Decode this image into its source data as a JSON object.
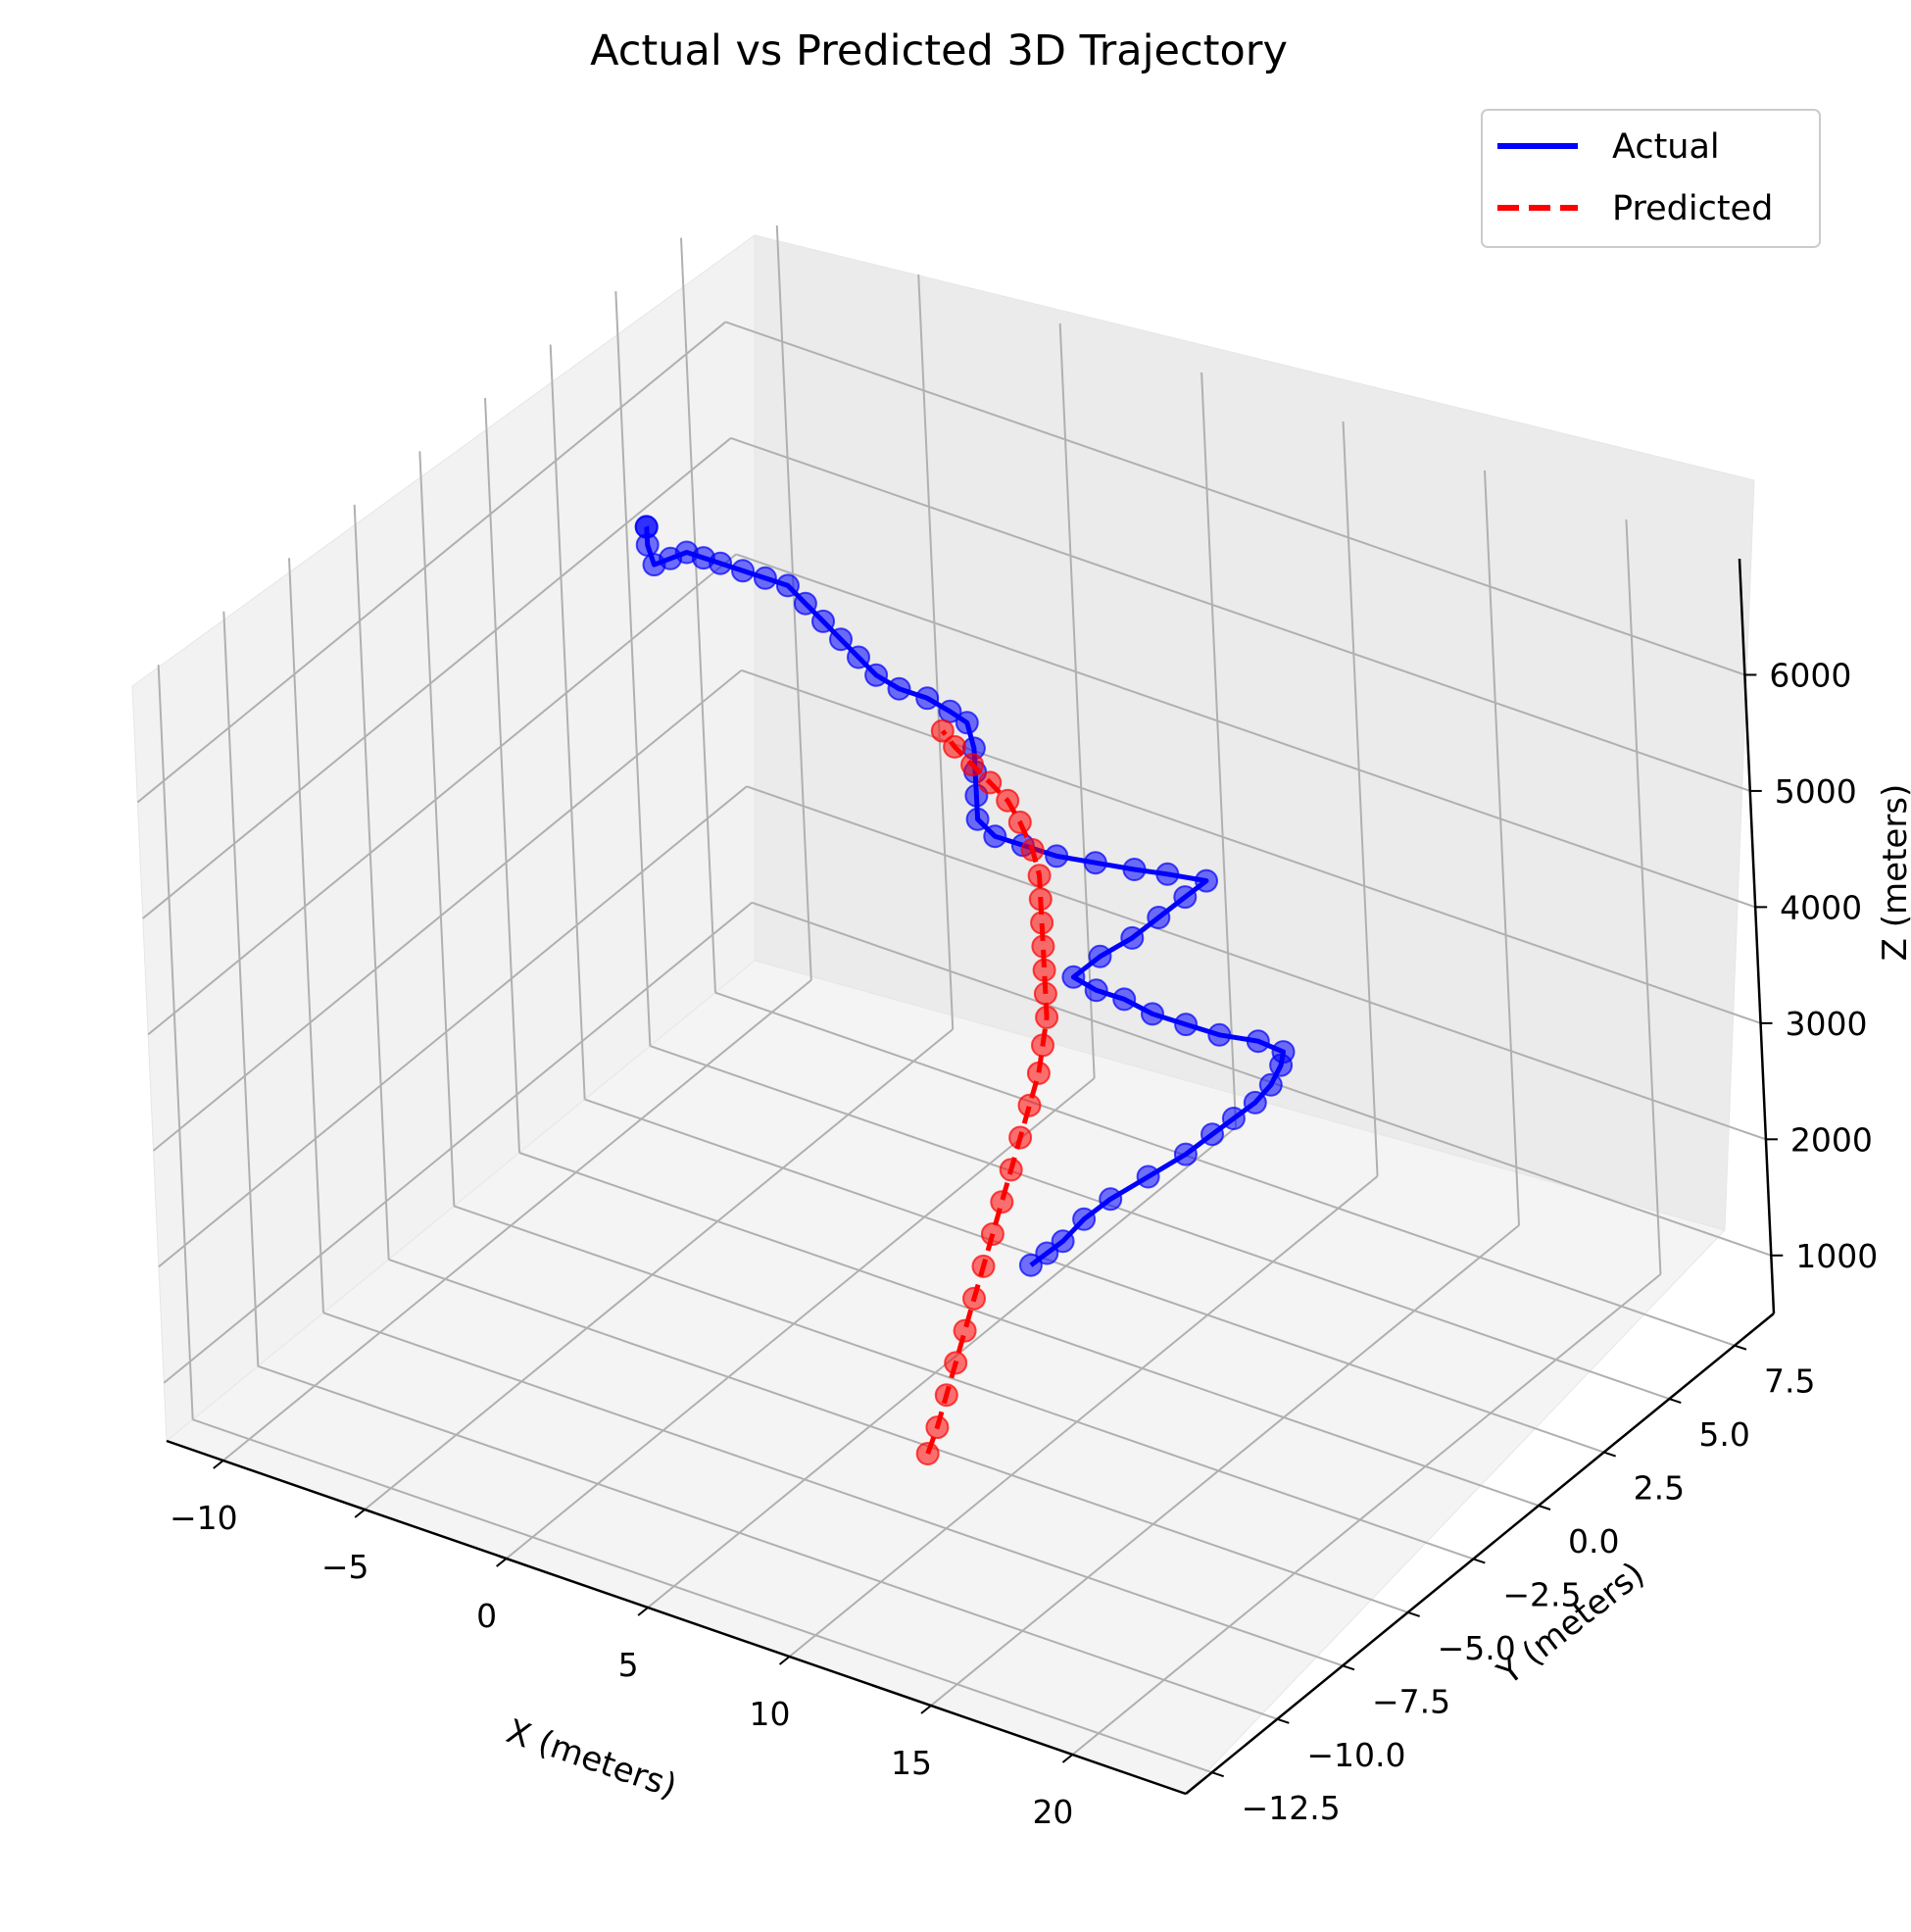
{
  "chart_data": {
    "type": "scatter3d-line",
    "title": "Actual vs Predicted 3D Trajectory",
    "xlabel": "X (meters)",
    "ylabel": "Y (meters)",
    "zlabel": "Z (meters)",
    "xlim": [
      -12,
      24
    ],
    "ylim": [
      -13.5,
      9
    ],
    "zlim": [
      500,
      7000
    ],
    "x_ticks": [
      -10,
      -5,
      0,
      5,
      10,
      15,
      20
    ],
    "x_tick_labels": [
      "−10",
      "−5",
      "0",
      "5",
      "10",
      "15",
      "20"
    ],
    "y_ticks": [
      -12.5,
      -10.0,
      -7.5,
      -5.0,
      -2.5,
      0.0,
      2.5,
      5.0,
      7.5
    ],
    "y_tick_labels": [
      "−12.5",
      "−10.0",
      "−7.5",
      "−5.0",
      "−2.5",
      "0.0",
      "2.5",
      "5.0",
      "7.5"
    ],
    "z_ticks": [
      1000,
      2000,
      3000,
      4000,
      5000,
      6000
    ],
    "z_tick_labels": [
      "1000",
      "2000",
      "3000",
      "4000",
      "5000",
      "6000"
    ],
    "grid": true,
    "legend_position": "top-right",
    "series": [
      {
        "name": "Actual",
        "color": "#0000ff",
        "linestyle": "solid",
        "points": [
          [
            5.2,
            1.0,
            800
          ],
          [
            5.6,
            1.2,
            900
          ],
          [
            6.0,
            1.4,
            1000
          ],
          [
            6.4,
            1.8,
            1150
          ],
          [
            7.0,
            2.2,
            1300
          ],
          [
            7.8,
            2.8,
            1450
          ],
          [
            8.6,
            3.4,
            1600
          ],
          [
            9.2,
            3.8,
            1750
          ],
          [
            9.8,
            4.0,
            1900
          ],
          [
            10.4,
            4.2,
            2050
          ],
          [
            10.8,
            4.4,
            2200
          ],
          [
            11.0,
            4.6,
            2350
          ],
          [
            11.2,
            4.5,
            2500
          ],
          [
            10.8,
            4.0,
            2650
          ],
          [
            10.2,
            3.2,
            2800
          ],
          [
            9.6,
            2.6,
            2950
          ],
          [
            9.0,
            2.0,
            3100
          ],
          [
            8.4,
            1.6,
            3250
          ],
          [
            7.8,
            1.2,
            3350
          ],
          [
            7.2,
            1.0,
            3450
          ],
          [
            7.6,
            1.6,
            3550
          ],
          [
            8.2,
            2.2,
            3650
          ],
          [
            8.6,
            2.8,
            3750
          ],
          [
            9.0,
            3.4,
            3850
          ],
          [
            9.4,
            3.8,
            3950
          ],
          [
            8.6,
            3.2,
            4050
          ],
          [
            8.0,
            2.6,
            4150
          ],
          [
            7.2,
            2.0,
            4250
          ],
          [
            6.4,
            1.4,
            4350
          ],
          [
            5.6,
            1.0,
            4450
          ],
          [
            5.0,
            0.6,
            4550
          ],
          [
            4.6,
            0.4,
            4700
          ],
          [
            4.4,
            0.6,
            4850
          ],
          [
            4.2,
            0.8,
            5000
          ],
          [
            4.0,
            1.0,
            5150
          ],
          [
            3.6,
            1.2,
            5300
          ],
          [
            3.2,
            1.0,
            5400
          ],
          [
            2.6,
            0.8,
            5500
          ],
          [
            1.8,
            0.6,
            5550
          ],
          [
            1.0,
            0.6,
            5600
          ],
          [
            0.2,
            0.8,
            5650
          ],
          [
            -0.6,
            1.0,
            5700
          ],
          [
            -1.4,
            1.2,
            5750
          ],
          [
            -2.2,
            1.4,
            5800
          ],
          [
            -3.0,
            1.6,
            5850
          ],
          [
            -3.6,
            1.4,
            5900
          ],
          [
            -4.2,
            1.2,
            5950
          ],
          [
            -4.8,
            1.0,
            6000
          ],
          [
            -5.2,
            0.8,
            6050
          ],
          [
            -5.6,
            0.6,
            6100
          ],
          [
            -6.0,
            0.4,
            6050
          ],
          [
            -6.4,
            0.2,
            6000
          ],
          [
            -6.8,
            0.4,
            6100
          ],
          [
            -7.0,
            0.6,
            6200
          ],
          [
            -7.2,
            0.8,
            6150
          ]
        ]
      },
      {
        "name": "Predicted",
        "color": "#ff0000",
        "linestyle": "dashed",
        "points": [
          [
            8.0,
            -6.0,
            700
          ],
          [
            7.8,
            -5.4,
            800
          ],
          [
            7.6,
            -4.8,
            950
          ],
          [
            7.4,
            -4.2,
            1100
          ],
          [
            7.2,
            -3.6,
            1250
          ],
          [
            7.0,
            -3.0,
            1400
          ],
          [
            6.8,
            -2.4,
            1550
          ],
          [
            6.6,
            -1.8,
            1700
          ],
          [
            6.4,
            -1.2,
            1850
          ],
          [
            6.2,
            -0.6,
            2000
          ],
          [
            6.0,
            0.0,
            2150
          ],
          [
            5.8,
            0.6,
            2300
          ],
          [
            5.6,
            1.2,
            2450
          ],
          [
            5.4,
            1.6,
            2600
          ],
          [
            5.2,
            2.0,
            2750
          ],
          [
            5.0,
            2.2,
            2900
          ],
          [
            4.8,
            2.4,
            3050
          ],
          [
            4.6,
            2.6,
            3200
          ],
          [
            4.4,
            2.8,
            3350
          ],
          [
            4.2,
            3.0,
            3500
          ],
          [
            4.0,
            3.2,
            3650
          ],
          [
            3.6,
            3.4,
            3800
          ],
          [
            3.0,
            3.6,
            3950
          ],
          [
            2.4,
            3.8,
            4050
          ],
          [
            1.6,
            4.0,
            4100
          ],
          [
            0.8,
            4.2,
            4150
          ],
          [
            0.0,
            4.4,
            4200
          ],
          [
            -0.6,
            4.6,
            4250
          ]
        ]
      }
    ]
  }
}
